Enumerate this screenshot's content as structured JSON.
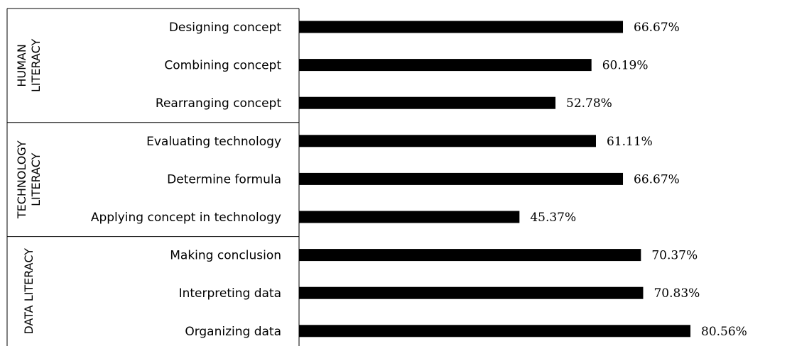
{
  "chart_data": {
    "type": "bar",
    "orientation": "horizontal",
    "title": "",
    "xlabel": "",
    "ylabel": "",
    "categories": [
      "Designing concept",
      "Combining concept",
      "Rearranging concept",
      "Evaluating technology",
      "Determine formula",
      "Applying concept in technology",
      "Making conclusion",
      "Interpreting data",
      "Organizing data"
    ],
    "values": [
      66.67,
      60.19,
      52.78,
      61.11,
      66.67,
      45.37,
      70.37,
      70.83,
      80.56
    ],
    "value_labels": [
      "66.67%",
      "60.19%",
      "52.78%",
      "61.11%",
      "66.67%",
      "45.37%",
      "70.37%",
      "70.83%",
      "80.56%"
    ],
    "groups": [
      {
        "lines": [
          "HUMAN",
          "LITERACY"
        ],
        "categories": [
          0,
          1,
          2
        ]
      },
      {
        "lines": [
          "TECHNOLOGY",
          "LITERACY"
        ],
        "categories": [
          3,
          4,
          5
        ]
      },
      {
        "lines": [
          "DATA LITERACY"
        ],
        "categories": [
          6,
          7,
          8
        ]
      }
    ],
    "xlim": [
      0,
      100
    ],
    "grid": false,
    "legend": "none",
    "bar_color": "#000000"
  }
}
